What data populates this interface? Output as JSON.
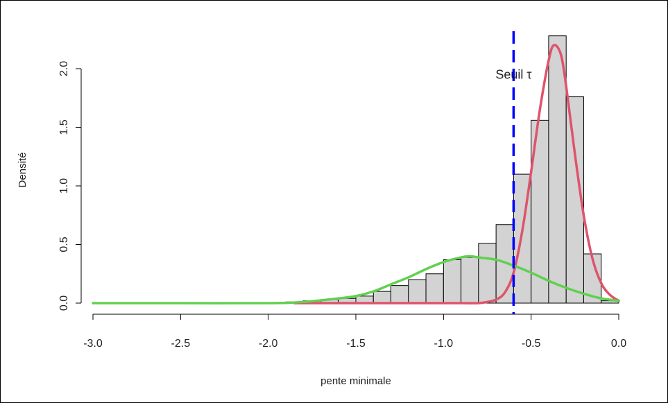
{
  "chart_data": {
    "type": "bar",
    "xlabel": "pente minimale",
    "ylabel": "Densité",
    "xlim": [
      -3.0,
      0.0
    ],
    "ylim": [
      0,
      2.3
    ],
    "x_ticks": [
      "-3.0",
      "-2.5",
      "-2.0",
      "-1.5",
      "-1.0",
      "-0.5",
      "0.0"
    ],
    "y_ticks": [
      "0.0",
      "0.5",
      "1.0",
      "1.5",
      "2.0"
    ],
    "grid": false,
    "histogram": {
      "bin_width": 0.1,
      "bin_starts": [
        -1.9,
        -1.8,
        -1.7,
        -1.6,
        -1.5,
        -1.4,
        -1.3,
        -1.2,
        -1.1,
        -1.0,
        -0.9,
        -0.8,
        -0.7,
        -0.6,
        -0.5,
        -0.4,
        -0.3,
        -0.2,
        -0.1
      ],
      "densities": [
        0.01,
        0.02,
        0.03,
        0.04,
        0.06,
        0.1,
        0.15,
        0.2,
        0.25,
        0.37,
        0.39,
        0.51,
        0.67,
        1.1,
        1.56,
        2.28,
        1.76,
        0.42,
        0.02
      ],
      "fill": "#d3d3d3",
      "stroke": "#000000"
    },
    "series": [
      {
        "color": "#df536b",
        "x": [
          -1.85,
          -1.2,
          -0.9,
          -0.8,
          -0.75,
          -0.7,
          -0.65,
          -0.6,
          -0.55,
          -0.5,
          -0.45,
          -0.4,
          -0.37,
          -0.33,
          -0.3,
          -0.25,
          -0.2,
          -0.15,
          -0.1,
          -0.05,
          0.0
        ],
        "y": [
          0.0,
          0.0,
          0.0,
          0.0,
          0.01,
          0.03,
          0.09,
          0.26,
          0.62,
          1.12,
          1.65,
          2.07,
          2.2,
          2.12,
          1.85,
          1.27,
          0.75,
          0.38,
          0.17,
          0.07,
          0.02
        ]
      },
      {
        "color": "#61d04f",
        "x": [
          -3.0,
          -2.5,
          -2.0,
          -1.8,
          -1.6,
          -1.5,
          -1.4,
          -1.3,
          -1.2,
          -1.1,
          -1.0,
          -0.9,
          -0.85,
          -0.8,
          -0.7,
          -0.6,
          -0.5,
          -0.4,
          -0.3,
          -0.2,
          -0.1,
          0.0
        ],
        "y": [
          0.0,
          0.0,
          0.0,
          0.01,
          0.04,
          0.06,
          0.1,
          0.16,
          0.22,
          0.29,
          0.35,
          0.39,
          0.4,
          0.39,
          0.37,
          0.32,
          0.26,
          0.19,
          0.13,
          0.08,
          0.04,
          0.02
        ]
      }
    ],
    "threshold": {
      "x": -0.6,
      "color": "#0000ff",
      "style": "dashed",
      "label": "Seuil τ",
      "label_y": 1.95
    }
  }
}
